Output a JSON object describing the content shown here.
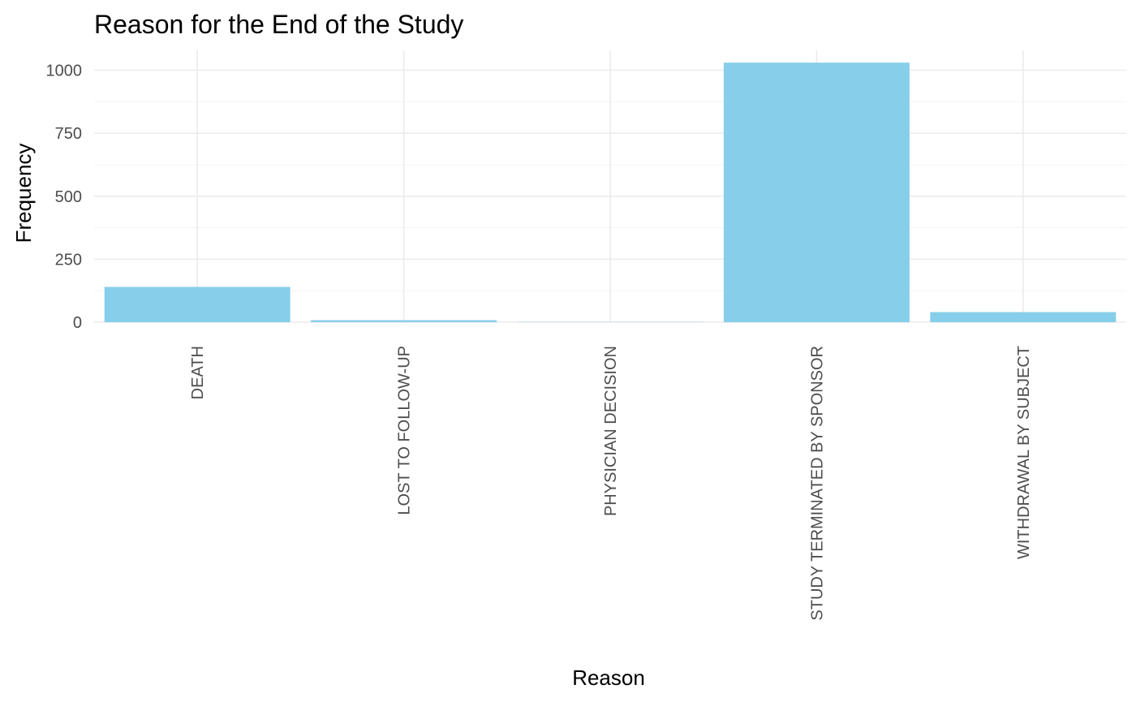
{
  "chart_data": {
    "type": "bar",
    "title": "Reason for the End of the Study",
    "xlabel": "Reason",
    "ylabel": "Frequency",
    "categories": [
      "DEATH",
      "LOST TO FOLLOW-UP",
      "PHYSICIAN DECISION",
      "STUDY TERMINATED BY SPONSOR",
      "WITHDRAWAL BY SUBJECT"
    ],
    "values": [
      140,
      8,
      1,
      1030,
      40
    ],
    "yticks": [
      "0",
      "250",
      "500",
      "750",
      "1000"
    ],
    "ylim": [
      0,
      1080
    ],
    "grid": true,
    "bar_color": "#87CEEB",
    "gridline_color": "#ebebeb"
  }
}
